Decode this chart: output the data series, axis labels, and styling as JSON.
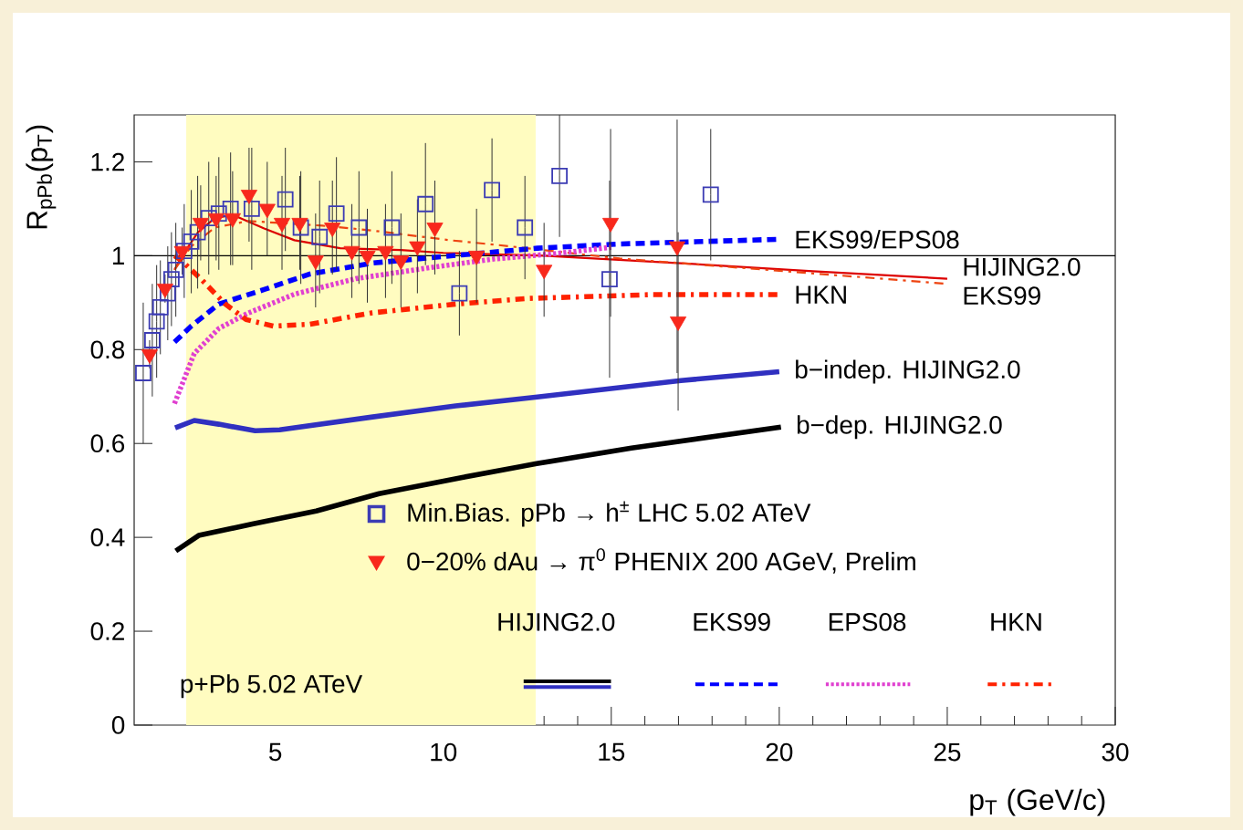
{
  "chart_data": {
    "type": "line",
    "xlabel": "p$_{T}$ (GeV/c)",
    "ylabel": "R$_{pPb}$(p$_{T}$)",
    "xlim": [
      0.8,
      30
    ],
    "ylim": [
      0,
      1.3
    ],
    "xticks": [
      5,
      10,
      15,
      20,
      25,
      30
    ],
    "yticks": [
      0,
      0.2,
      0.4,
      0.6,
      0.8,
      1,
      1.2
    ],
    "legend": "bottom right",
    "bands": [
      {
        "axis": "x",
        "from": 2.35,
        "to": 12.75,
        "color": "#fffcc0"
      }
    ],
    "ref_lines": [
      {
        "axis": "y",
        "value": 1,
        "color": "#000000"
      }
    ],
    "annotations": [
      "p+Pb 5.02 ATeV",
      "HIJING2.0",
      "EKS99",
      "EPS08",
      "HKN"
    ],
    "series": [
      {
        "name": "Min.Bias. pPb → h$^{±}$ LHC 5.02 ATeV",
        "type": "scatter",
        "marker": "square",
        "color": "#3c3cb4",
        "x": [
          1.07,
          1.34,
          1.47,
          1.58,
          1.8,
          1.91,
          2.04,
          2.29,
          2.5,
          2.69,
          3.02,
          3.32,
          3.67,
          4.3,
          5.3,
          5.76,
          6.32,
          6.82,
          7.49,
          8.47,
          9.47,
          10.48,
          11.45,
          12.43,
          13.46,
          14.95,
          17.96
        ],
        "values": [
          0.75,
          0.82,
          0.86,
          0.89,
          0.92,
          0.95,
          0.97,
          1.01,
          1.03,
          1.05,
          1.08,
          1.09,
          1.1,
          1.1,
          1.12,
          1.06,
          1.04,
          1.09,
          1.06,
          1.06,
          1.11,
          0.92,
          1.14,
          1.06,
          1.17,
          0.95,
          1.13
        ],
        "errors": [
          0.15,
          0.12,
          0.12,
          0.1,
          0.1,
          0.1,
          0.1,
          0.1,
          0.11,
          0.12,
          0.12,
          0.12,
          0.12,
          0.13,
          0.11,
          0.12,
          0.12,
          0.12,
          0.12,
          0.12,
          0.13,
          0.09,
          0.11,
          0.11,
          0.13,
          0.21,
          0.14
        ]
      },
      {
        "name": "0−20% dAu → π$^{0}$ PHENIX 200 AGeV, Prelim",
        "type": "scatter",
        "marker": "triangle",
        "color": "#f8281c",
        "x": [
          1.26,
          1.72,
          2.23,
          2.78,
          3.24,
          3.73,
          4.22,
          4.76,
          5.2,
          5.73,
          6.2,
          6.7,
          7.28,
          7.74,
          8.28,
          8.74,
          9.23,
          9.75,
          10.99,
          13.0,
          14.98,
          16.96,
          16.99
        ],
        "values": [
          0.79,
          0.93,
          1.01,
          1.07,
          1.08,
          1.08,
          1.13,
          1.1,
          1.07,
          1.07,
          0.99,
          1.06,
          1.01,
          1.0,
          1.01,
          0.99,
          1.02,
          1.06,
          1.0,
          0.97,
          1.07,
          1.02,
          0.86
        ],
        "errors": [
          0.03,
          0.03,
          0.05,
          0.08,
          0.09,
          0.1,
          0.1,
          0.1,
          0.1,
          0.1,
          0.1,
          0.1,
          0.1,
          0.1,
          0.1,
          0.1,
          0.1,
          0.1,
          0.1,
          0.1,
          0.2,
          0.27,
          0.19
        ]
      },
      {
        "name": "HIJING2.0",
        "line_style": "solid",
        "color": "#dd0000",
        "x": [
          2.0,
          2.23,
          2.7,
          3.2,
          3.73,
          4.67,
          5.57,
          6.93,
          8.74,
          10,
          13,
          17.07,
          21,
          25
        ],
        "values": [
          0.97,
          1.0,
          1.05,
          1.08,
          1.087,
          1.058,
          1.033,
          1.016,
          1.012,
          1.006,
          1.0,
          0.984,
          0.967,
          0.951
        ]
      },
      {
        "name": "EKS99",
        "line_style": "dashdot",
        "color": "#ee4411",
        "x": [
          2.0,
          2.5,
          3.2,
          4.2,
          6.4,
          7.85,
          10.2,
          11.6,
          15.25,
          20,
          25
        ],
        "values": [
          0.97,
          1.02,
          1.06,
          1.074,
          1.064,
          1.054,
          1.033,
          1.023,
          0.994,
          0.968,
          0.94
        ]
      },
      {
        "name": "EKS99/EPS08",
        "line_style": "dashed",
        "color": "#0000ff",
        "x": [
          2.0,
          2.5,
          3.32,
          4.67,
          6.03,
          7.85,
          9.64,
          12.8,
          15.25,
          20
        ],
        "values": [
          0.816,
          0.85,
          0.897,
          0.928,
          0.961,
          0.984,
          0.996,
          1.016,
          1.025,
          1.035
        ]
      },
      {
        "line_style": "dotted",
        "color": "#e040d0",
        "x": [
          2.0,
          2.59,
          3.32,
          4.2,
          5.57,
          7.39,
          9.64,
          11.5,
          13.4,
          15
        ],
        "values": [
          0.685,
          0.792,
          0.845,
          0.878,
          0.918,
          0.951,
          0.975,
          0.993,
          1.005,
          1.018
        ]
      },
      {
        "name": "HKN",
        "line_style": "dashdot",
        "color": "#ff2200",
        "x": [
          2.0,
          2.2,
          2.78,
          3.51,
          4.13,
          4.95,
          6.03,
          7.85,
          10.37,
          12.54,
          16.15,
          20
        ],
        "values": [
          1.0,
          0.99,
          0.951,
          0.897,
          0.864,
          0.85,
          0.854,
          0.878,
          0.897,
          0.909,
          0.917,
          0.917
        ]
      },
      {
        "name": "b−indep. HIJING2.0",
        "line_style": "solid",
        "color": "#3030c0",
        "x": [
          2.02,
          2.59,
          3.32,
          4.4,
          5.13,
          7.85,
          10.37,
          12.8,
          17.07,
          20
        ],
        "values": [
          0.633,
          0.649,
          0.641,
          0.627,
          0.629,
          0.656,
          0.68,
          0.699,
          0.734,
          0.753
        ]
      },
      {
        "name": "b−dep. HIJING2.0",
        "line_style": "solid",
        "color": "#000000",
        "x": [
          2.04,
          2.72,
          4.35,
          6.22,
          8.09,
          10.6,
          12.78,
          15.6,
          20.05
        ],
        "values": [
          0.371,
          0.404,
          0.429,
          0.456,
          0.493,
          0.528,
          0.557,
          0.59,
          0.635
        ]
      }
    ]
  }
}
